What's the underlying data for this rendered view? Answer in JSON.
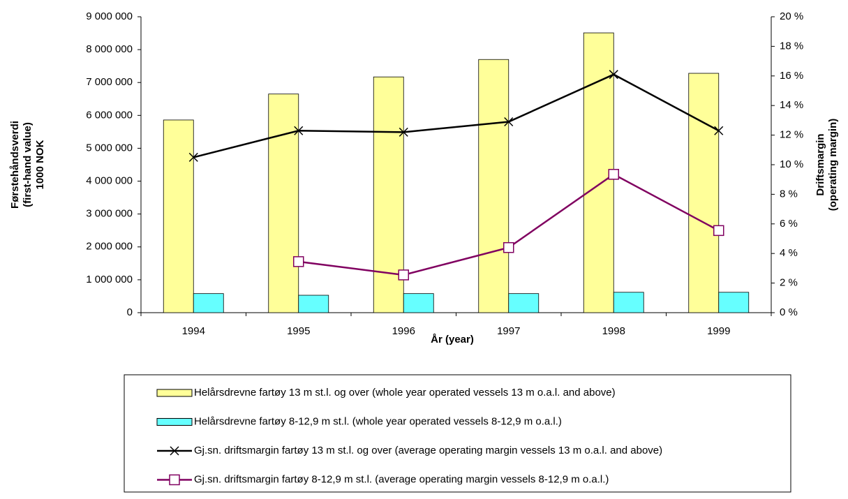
{
  "chart_data": {
    "type": "bar",
    "xlabel": "År (year)",
    "ylabel": [
      "Førstehåndsverdi",
      "(first-hand value)",
      "1000 NOK"
    ],
    "y2label": [
      "Driftsmargin",
      "(operating margin)"
    ],
    "categories": [
      "1994",
      "1995",
      "1996",
      "1997",
      "1998",
      "1999"
    ],
    "ylim": [
      0,
      9000000
    ],
    "yticks": [
      {
        "value": 0,
        "label": "0"
      },
      {
        "value": 1000000,
        "label": "1 000 000"
      },
      {
        "value": 2000000,
        "label": "2 000 000"
      },
      {
        "value": 3000000,
        "label": "3 000 000"
      },
      {
        "value": 4000000,
        "label": "4 000 000"
      },
      {
        "value": 5000000,
        "label": "5 000 000"
      },
      {
        "value": 6000000,
        "label": "6 000 000"
      },
      {
        "value": 7000000,
        "label": "7 000 000"
      },
      {
        "value": 8000000,
        "label": "8 000 000"
      },
      {
        "value": 9000000,
        "label": "9 000 000"
      }
    ],
    "y2lim": [
      0,
      20
    ],
    "y2ticks": [
      {
        "value": 0,
        "label": "0 %"
      },
      {
        "value": 2,
        "label": "2 %"
      },
      {
        "value": 4,
        "label": "4 %"
      },
      {
        "value": 6,
        "label": "6 %"
      },
      {
        "value": 8,
        "label": "8 %"
      },
      {
        "value": 10,
        "label": "10 %"
      },
      {
        "value": 12,
        "label": "12 %"
      },
      {
        "value": 14,
        "label": "14 %"
      },
      {
        "value": 16,
        "label": "16 %"
      },
      {
        "value": 18,
        "label": "18 %"
      },
      {
        "value": 20,
        "label": "20 %"
      }
    ],
    "legend": "bottom",
    "series": [
      {
        "name": "Helårsdrevne fartøy 13 m st.l. og over (whole year operated vessels 13 m o.a.l. and above)",
        "type": "bar",
        "color": "#ffff99",
        "values": [
          5860000,
          6650000,
          7170000,
          7700000,
          8510000,
          7280000
        ]
      },
      {
        "name": "Helårsdrevne fartøy 8-12,9 m st.l. (whole year operated vessels 8-12,9 m o.a.l.)",
        "type": "bar",
        "color": "#66ffff",
        "values": [
          580000,
          530000,
          580000,
          580000,
          620000,
          620000
        ]
      },
      {
        "name": "Gj.sn. driftsmargin fartøy 13 m st.l. og over (average operating margin vessels 13 m o.a.l. and above)",
        "type": "line",
        "axis": "y2",
        "marker": "x",
        "color": "#000000",
        "values": [
          10.5,
          12.3,
          12.2,
          12.9,
          16.1,
          12.3
        ]
      },
      {
        "name": "Gj.sn. driftsmargin fartøy 8-12,9 m st.l. (average operating margin vessels 8-12,9 m o.a.l.)",
        "type": "line",
        "axis": "y2",
        "marker": "square",
        "color": "#800060",
        "values": [
          null,
          3.45,
          2.55,
          4.4,
          9.35,
          5.55
        ]
      }
    ]
  }
}
